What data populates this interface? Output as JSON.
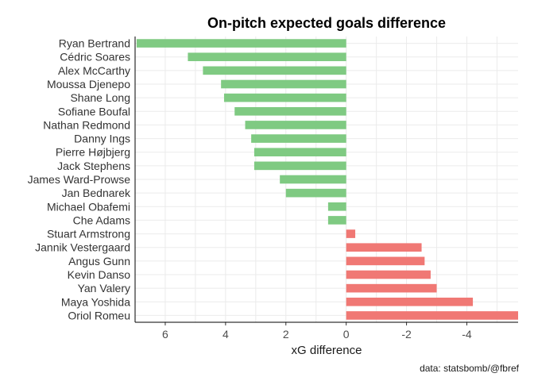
{
  "chart_data": {
    "type": "bar",
    "orientation": "horizontal",
    "title": "On-pitch expected goals difference",
    "xlabel": "xG difference",
    "ylabel": "",
    "caption": "data: statsbomb/@fbref",
    "x_reversed": true,
    "xlim": [
      7.0,
      -5.7
    ],
    "xticks": [
      6,
      4,
      2,
      0,
      -2,
      -4
    ],
    "xtick_labels": [
      "6",
      "4",
      "2",
      "0",
      "-2",
      "-4"
    ],
    "grid": true,
    "legend": "none",
    "colors": {
      "positive": "#7fca82",
      "negative": "#f07874"
    },
    "categories": [
      "Ryan Bertrand",
      "Cédric Soares",
      "Alex McCarthy",
      "Moussa Djenepo",
      "Shane Long",
      "Sofiane Boufal",
      "Nathan Redmond",
      "Danny Ings",
      "Pierre Højbjerg",
      "Jack Stephens",
      "James Ward-Prowse",
      "Jan Bednarek",
      "Michael Obafemi",
      "Che Adams",
      "Stuart Armstrong",
      "Jannik Vestergaard",
      "Angus Gunn",
      "Kevin Danso",
      "Yan Valery",
      "Maya Yoshida",
      "Oriol Romeu"
    ],
    "values": [
      6.95,
      5.25,
      4.75,
      4.15,
      4.05,
      3.7,
      3.35,
      3.15,
      3.05,
      3.05,
      2.2,
      2.0,
      0.6,
      0.6,
      -0.3,
      -2.5,
      -2.6,
      -2.8,
      -3.0,
      -4.2,
      -5.7
    ]
  }
}
